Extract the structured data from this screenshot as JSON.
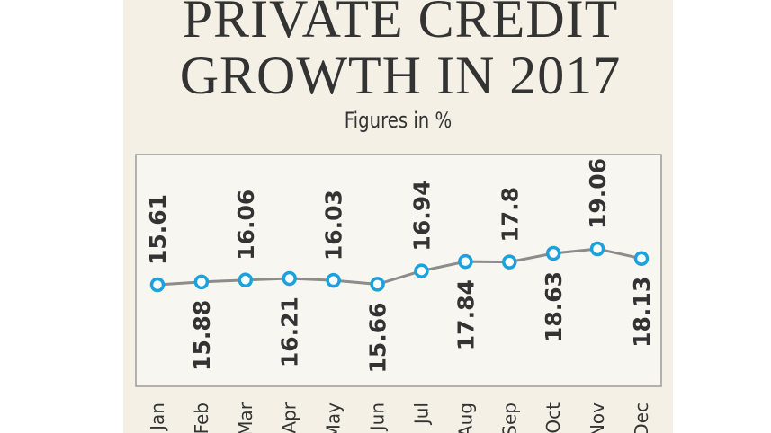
{
  "chart_data": {
    "type": "line",
    "title": "PRIVATE CREDIT GROWTH IN 2017",
    "subtitle": "Figures in %",
    "categories": [
      "Jan",
      "Feb",
      "Mar",
      "Apr",
      "May",
      "Jun",
      "Jul",
      "Aug",
      "Sep",
      "Oct",
      "Nov",
      "Dec"
    ],
    "values": [
      15.61,
      15.88,
      16.06,
      16.21,
      16.03,
      15.66,
      16.94,
      17.84,
      17.8,
      18.63,
      19.06,
      18.13
    ],
    "color": "#8c8c8c",
    "marker_color": "#1ba1dc"
  }
}
